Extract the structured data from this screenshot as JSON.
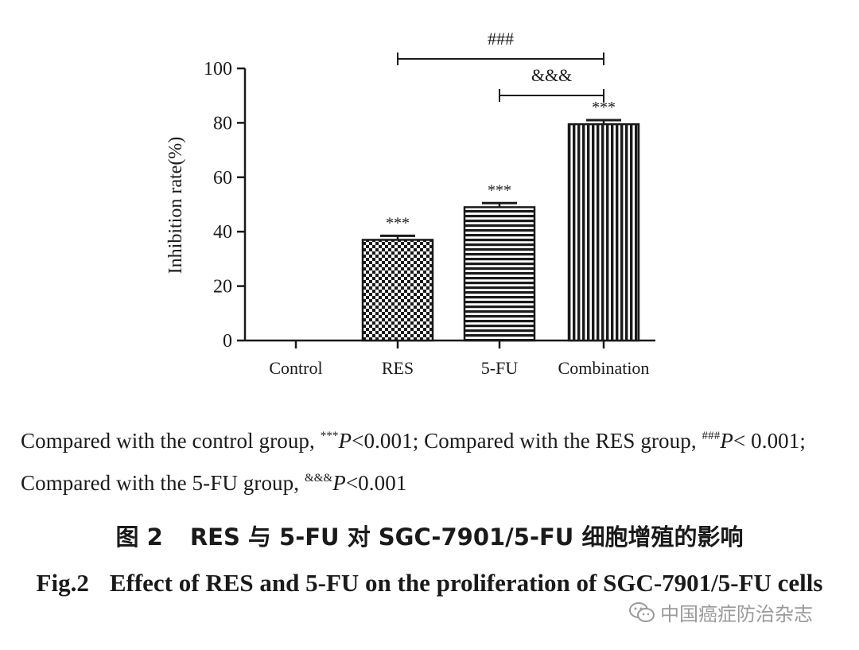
{
  "chart_data": {
    "type": "bar",
    "categories": [
      "Control",
      "RES",
      "5-FU",
      "Combination"
    ],
    "values": [
      0,
      37,
      49,
      79.5
    ],
    "errors": [
      0,
      1.5,
      1.5,
      1.5
    ],
    "patterns": [
      "none",
      "checker",
      "horizontal-stripes",
      "vertical-stripes"
    ],
    "bar_annotations": [
      "",
      "***",
      "***",
      "***"
    ],
    "ylabel": "Inhibition rate(%)",
    "xlabel": "",
    "ylim": [
      0,
      100
    ],
    "yticks": [
      0,
      20,
      40,
      60,
      80,
      100
    ],
    "brackets": [
      {
        "from": "RES",
        "to": "Combination",
        "label": "###",
        "level": 1
      },
      {
        "from": "5-FU",
        "to": "Combination",
        "label": "&&&",
        "level": 2
      }
    ],
    "grid": false
  },
  "footnote": {
    "part1": "Compared with the control group, ",
    "sup1": "***",
    "p1": "P",
    "val1": "<0.001; Compared with the RES group, ",
    "sup2": "###",
    "p2": "P",
    "val2": "< 0.001; Compared with the 5-FU group, ",
    "sup3": "&&&",
    "p3": "P",
    "val3": "<0.001"
  },
  "caption_cn": {
    "label": "图 2",
    "text": "RES 与 5-FU 对 SGC-7901/5-FU 细胞增殖的影响"
  },
  "caption_en": {
    "label": "Fig.2",
    "text": "Effect of RES and 5-FU on the proliferation of SGC-7901/5-FU cells"
  },
  "watermark": {
    "text": "中国癌症防治杂志",
    "icon": "wechat-icon"
  },
  "colors": {
    "ink": "#1a1a1a",
    "watermark": "#9a9a9a"
  }
}
